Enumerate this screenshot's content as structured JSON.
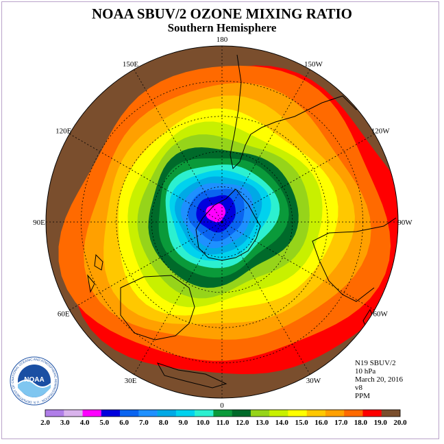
{
  "header": {
    "title": "NOAA SBUV/2 OZONE MIXING RATIO",
    "subtitle": "Southern Hemisphere"
  },
  "longitude_labels": [
    {
      "label": "90W",
      "lon": -90
    },
    {
      "label": "60W",
      "lon": -60
    },
    {
      "label": "30W",
      "lon": -30
    },
    {
      "label": "0",
      "lon": 0
    },
    {
      "label": "30E",
      "lon": 30
    },
    {
      "label": "60E",
      "lon": 60
    },
    {
      "label": "90E",
      "lon": 90
    },
    {
      "label": "120E",
      "lon": 120
    },
    {
      "label": "150E",
      "lon": 150
    },
    {
      "label": "180",
      "lon": 180
    },
    {
      "label": "150W",
      "lon": -150
    },
    {
      "label": "120W",
      "lon": -120
    }
  ],
  "info": {
    "instrument": "N19 SBUV/2",
    "pressure": "10 hPa",
    "date": "March 20, 2016",
    "version": "v8",
    "units": "PPM"
  },
  "logo": {
    "text": "NOAA",
    "ring_text": "NATIONAL OCEANIC AND ATMOSPHERIC ADMINISTRATION · U.S. DEPARTMENT OF COMMERCE"
  },
  "colorbar": {
    "tick_labels": [
      "2.0",
      "3.0",
      "4.0",
      "5.0",
      "6.0",
      "7.0",
      "8.0",
      "9.0",
      "10.0",
      "11.0",
      "12.0",
      "13.0",
      "14.0",
      "15.0",
      "16.0",
      "17.0",
      "18.0",
      "19.0",
      "20.0"
    ],
    "colors": [
      "#b07ee8",
      "#d9b3ec",
      "#ff00ff",
      "#0000dd",
      "#0a64f0",
      "#1e90ff",
      "#00a9e6",
      "#00d2ee",
      "#2cf0d0",
      "#0a9a3a",
      "#006a2a",
      "#96d41a",
      "#c8f000",
      "#ffff00",
      "#ffc800",
      "#ffa000",
      "#ff6a00",
      "#ff0000",
      "#7a4e2d"
    ]
  },
  "map": {
    "land_color": "#000000",
    "ocean_outside_color": "#7a4e2d",
    "pole_value_ppm": 4.5
  }
}
